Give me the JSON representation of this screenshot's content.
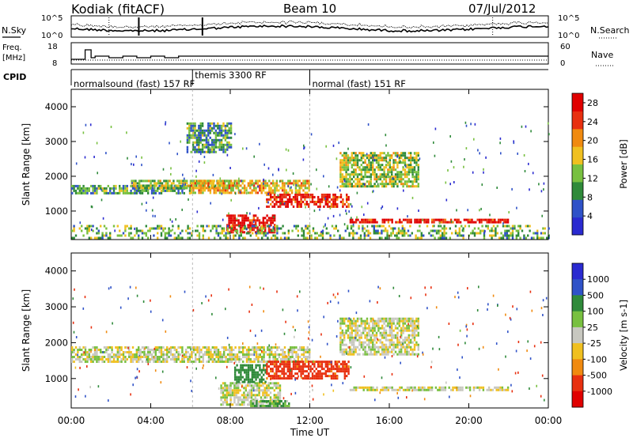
{
  "header": {
    "station": "Kodiak (fitACF)",
    "beam": "Beam 10",
    "date": "07/Jul/2012"
  },
  "noise_panel": {
    "left_label": "N.Sky",
    "right_label": "N.Search",
    "left_ticks": [
      "10^5",
      "10^0"
    ],
    "right_ticks": [
      "10^5",
      "10^0"
    ]
  },
  "freq_panel": {
    "left_label_1": "Freq.",
    "left_label_2": "[MHz]",
    "left_ticks": [
      "18",
      "8"
    ],
    "right_label": "Nave",
    "right_ticks": [
      "60",
      "0"
    ]
  },
  "cpid_panel": {
    "label": "CPID",
    "modes": [
      {
        "name": "normalsound (fast) 157 RF",
        "start_hour": 0.0
      },
      {
        "name": "themis 3300 RF",
        "start_hour": 6.1
      },
      {
        "name": "normal (fast) 151 RF",
        "start_hour": 12.0
      }
    ]
  },
  "time_axis": {
    "label": "Time UT",
    "ticks": [
      "00:00",
      "04:00",
      "08:00",
      "12:00",
      "16:00",
      "20:00",
      "00:00"
    ],
    "range_hours": [
      0,
      24
    ]
  },
  "chart_data": [
    {
      "type": "heatmap",
      "panel": "power",
      "ylabel": "Slant Range [km]",
      "yticks": [
        "1000",
        "2000",
        "3000",
        "4000"
      ],
      "ylim": [
        180,
        4500
      ],
      "colorbar": {
        "label": "Power [dB]",
        "ticks": [
          "4",
          "8",
          "12",
          "16",
          "20",
          "24",
          "28"
        ],
        "range": [
          0,
          30
        ],
        "colors": [
          "#2a2ad0",
          "#2f52c8",
          "#2f8a3a",
          "#78c040",
          "#f0c020",
          "#f08a10",
          "#e83010",
          "#e00000"
        ]
      },
      "regions": [
        {
          "t0": 0.0,
          "t1": 6.0,
          "r0": 1500,
          "r1": 1750,
          "level": 10
        },
        {
          "t0": 3.0,
          "t1": 8.5,
          "r0": 1650,
          "r1": 1900,
          "level": 14
        },
        {
          "t0": 6.0,
          "t1": 12.0,
          "r0": 1500,
          "r1": 1900,
          "level": 18
        },
        {
          "t0": 7.8,
          "t1": 10.2,
          "r0": 400,
          "r1": 900,
          "level": 28
        },
        {
          "t0": 9.8,
          "t1": 14.0,
          "r0": 1100,
          "r1": 1500,
          "level": 26
        },
        {
          "t0": 13.5,
          "t1": 17.5,
          "r0": 1700,
          "r1": 2700,
          "level": 14
        },
        {
          "t0": 14.0,
          "t1": 22.0,
          "r0": 650,
          "r1": 780,
          "level": 28
        },
        {
          "t0": 5.8,
          "t1": 8.0,
          "r0": 2700,
          "r1": 3550,
          "level": 10
        },
        {
          "t0": 0.0,
          "t1": 24.0,
          "r0": 200,
          "r1": 600,
          "level": 12
        }
      ]
    },
    {
      "type": "heatmap",
      "panel": "velocity",
      "ylabel": "Slant Range [km]",
      "yticks": [
        "1000",
        "2000",
        "3000",
        "4000"
      ],
      "ylim": [
        180,
        4500
      ],
      "colorbar": {
        "label": "Velocity [m s-1]",
        "ticks": [
          "1000",
          "500",
          "100",
          "25",
          "-25",
          "-100",
          "-500",
          "-1000"
        ],
        "colors": [
          "#2a2ad0",
          "#2f52c8",
          "#2f8a3a",
          "#78c040",
          "#c8c8c0",
          "#f0c020",
          "#f08a10",
          "#e83010",
          "#e00000"
        ]
      },
      "regions": [
        {
          "t0": 0.0,
          "t1": 12.0,
          "r0": 1500,
          "r1": 1900,
          "velocity": 0
        },
        {
          "t0": 7.5,
          "t1": 10.5,
          "r0": 300,
          "r1": 900,
          "velocity": 0
        },
        {
          "t0": 8.2,
          "t1": 9.8,
          "r0": 900,
          "r1": 1400,
          "velocity": 150
        },
        {
          "t0": 9.8,
          "t1": 14.0,
          "r0": 1000,
          "r1": 1500,
          "velocity": -350
        },
        {
          "t0": 13.5,
          "t1": 17.5,
          "r0": 1700,
          "r1": 2700,
          "velocity": 0
        },
        {
          "t0": 14.0,
          "t1": 22.0,
          "r0": 650,
          "r1": 780,
          "velocity": 0
        },
        {
          "t0": 9.0,
          "t1": 11.0,
          "r0": 250,
          "r1": 400,
          "velocity": 60
        }
      ]
    }
  ]
}
